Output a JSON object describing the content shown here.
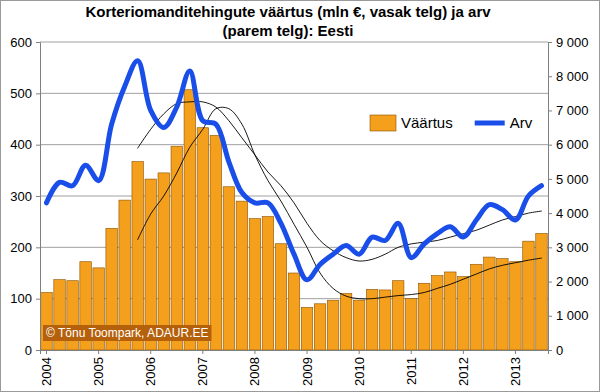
{
  "chart_data": {
    "type": "bar",
    "title": [
      "Korteriomanditehingute väärtus (mln €, vasak telg) ja arv",
      "(parem telg): Eesti"
    ],
    "categories": [
      "2004",
      null,
      null,
      null,
      "2005",
      null,
      null,
      null,
      "2006",
      null,
      null,
      null,
      "2007",
      null,
      null,
      null,
      "2008",
      null,
      null,
      null,
      "2009",
      null,
      null,
      null,
      "2010",
      null,
      null,
      null,
      "2011",
      null,
      null,
      null,
      "2012",
      null,
      null,
      null,
      "2013",
      null,
      null
    ],
    "series": [
      {
        "name": "Väärtus",
        "type": "bar",
        "color": "#f4a01c",
        "values": [
          112,
          137,
          135,
          172,
          160,
          237,
          292,
          367,
          333,
          345,
          397,
          507,
          433,
          418,
          318,
          290,
          256,
          260,
          207,
          150,
          83,
          90,
          97,
          110,
          97,
          118,
          117,
          135,
          100,
          130,
          145,
          152,
          143,
          167,
          181,
          178,
          172,
          212,
          227
        ]
      },
      {
        "name": "Arv",
        "type": "line",
        "axis": "y2",
        "color": "#1a4ee8",
        "values": [
          4300,
          4900,
          4800,
          5400,
          4950,
          6600,
          7700,
          8450,
          7000,
          6500,
          7100,
          8150,
          6700,
          6600,
          5500,
          4600,
          4300,
          4300,
          3700,
          2800,
          2050,
          2500,
          2800,
          3050,
          2800,
          3300,
          3200,
          3700,
          2700,
          3100,
          3400,
          3600,
          3300,
          3800,
          4250,
          4100,
          3800,
          4500,
          4800
        ]
      },
      {
        "type": "line",
        "color": "#000000",
        "values": [
          null,
          null,
          null,
          null,
          null,
          null,
          null,
          215,
          265,
          300,
          345,
          395,
          430,
          470,
          470,
          440,
          380,
          330,
          290,
          245,
          200,
          150,
          120,
          105,
          100,
          100,
          103,
          106,
          108,
          112,
          120,
          128,
          138,
          148,
          158,
          165,
          170,
          175,
          179
        ]
      },
      {
        "type": "line",
        "axis": "y2",
        "color": "#000000",
        "values": [
          null,
          null,
          null,
          null,
          null,
          null,
          null,
          5900,
          6450,
          6900,
          7200,
          7250,
          7250,
          7100,
          6700,
          6200,
          5700,
          5200,
          4800,
          4300,
          3700,
          3200,
          2900,
          2700,
          2600,
          2650,
          2800,
          3000,
          3100,
          3150,
          3200,
          3300,
          3400,
          3500,
          3650,
          3800,
          3900,
          4000,
          4060
        ]
      }
    ],
    "ylim": [
      0,
      600
    ],
    "yticks": [
      0,
      100,
      200,
      300,
      400,
      500,
      600
    ],
    "y2lim": [
      0,
      9000
    ],
    "y2ticks": [
      0,
      {
        "value": 1000,
        "label": "1 000"
      },
      {
        "value": 2000,
        "label": "2 000"
      },
      {
        "value": 3000,
        "label": "3 000"
      },
      {
        "value": 4000,
        "label": "4 000"
      },
      {
        "value": 5000,
        "label": "5 000"
      },
      {
        "value": 6000,
        "label": "6 000"
      },
      {
        "value": 7000,
        "label": "7 000"
      },
      {
        "value": 8000,
        "label": "8 000"
      },
      {
        "value": 9000,
        "label": "9 000"
      }
    ],
    "grid": true,
    "legend": "upper right",
    "annotations": [
      {
        "text": "© Tõnu Toompark, ADAUR.EE"
      }
    ]
  }
}
